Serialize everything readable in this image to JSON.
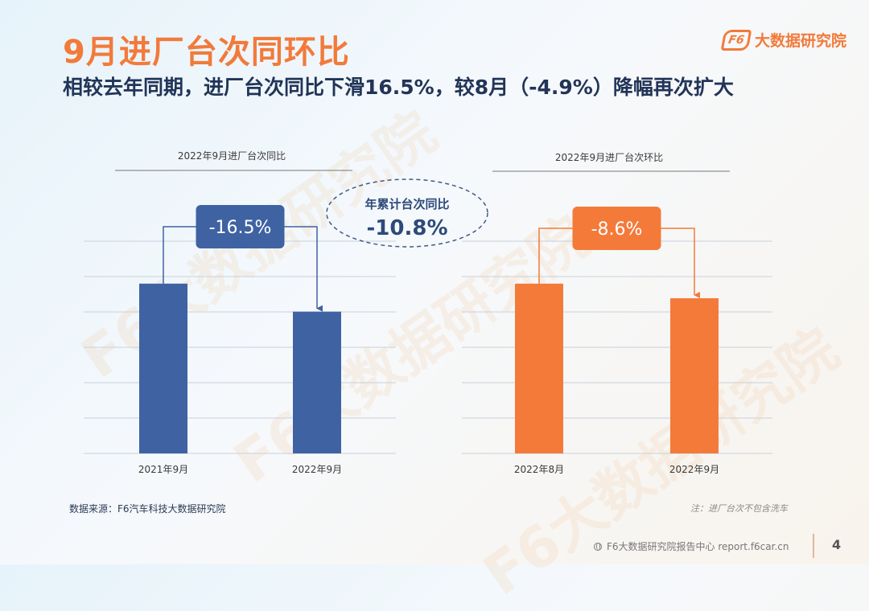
{
  "header": {
    "title": "9月进厂台次同环比",
    "subtitle": "相较去年同期，进厂台次同比下滑16.5%，较8月（-4.9%）降幅再次扩大",
    "logo_text": "大数据研究院",
    "logo_badge": "F6"
  },
  "watermark_text": "F6大数据研究院",
  "colors": {
    "title": "#f27a3a",
    "blue": "#3f62a3",
    "orange": "#f47a3a",
    "grid": "#c9d0da"
  },
  "chart_data": [
    {
      "type": "bar",
      "title": "2022年9月进厂台次同比",
      "categories": [
        "2021年9月",
        "2022年9月"
      ],
      "values": [
        100,
        83.5
      ],
      "color": "#3f62a3",
      "change_label": "-16.5%",
      "ylim": [
        0,
        125
      ],
      "grid": true
    },
    {
      "type": "bar",
      "title": "2022年9月进厂台次环比",
      "categories": [
        "2022年8月",
        "2022年9月"
      ],
      "values": [
        100,
        91.4
      ],
      "color": "#f47a3a",
      "change_label": "-8.6%",
      "ylim": [
        0,
        125
      ],
      "grid": true
    }
  ],
  "ytd_callout": {
    "label": "年累计台次同比",
    "value": "-10.8%"
  },
  "footer": {
    "source": "数据来源：F6汽车科技大数据研究院",
    "note": "注：进厂台次不包含洗车",
    "site": "F6大数据研究院报告中心 report.f6car.cn",
    "page": "4"
  }
}
